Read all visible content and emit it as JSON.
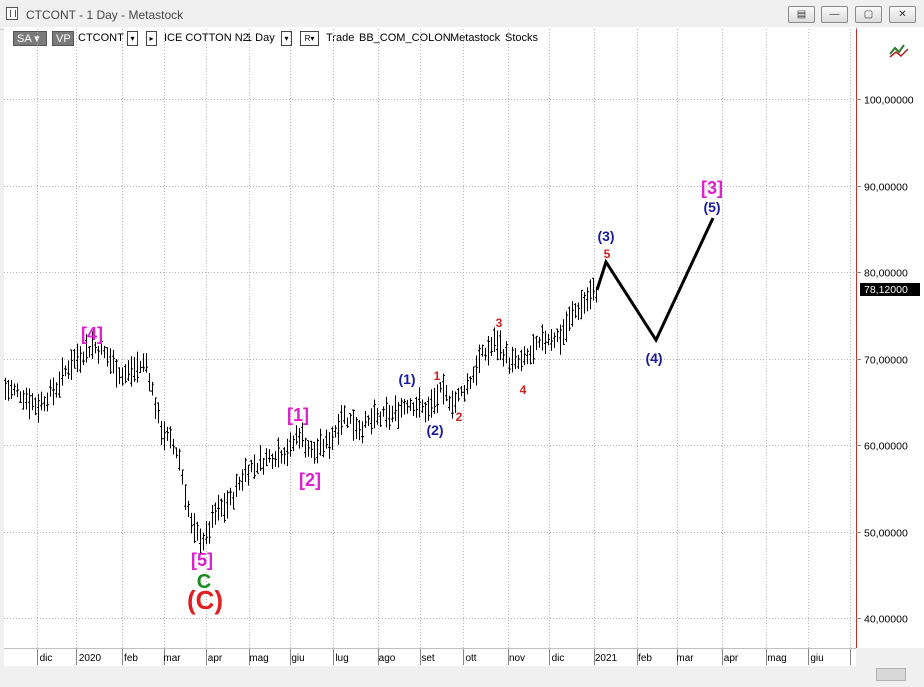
{
  "window": {
    "title": "CTCONT - 1 Day - Metastock"
  },
  "toolbar": {
    "sa_label": "SA",
    "vp_label": "VP",
    "symbol": "CTCONT",
    "instrument": "ICE COTTON N2",
    "period": "1 Day",
    "r_label": "R",
    "trade_label": "Trade",
    "layout": "BB_COM_COLON",
    "source": "Metastock",
    "category": "Stocks"
  },
  "price_axis": {
    "labels": [
      "100,00000",
      "90,00000",
      "80,00000",
      "70,00000",
      "60,00000",
      "50,00000",
      "40,00000"
    ],
    "current_price": "78,12000"
  },
  "time_axis": {
    "labels": [
      "dic",
      "2020",
      "feb",
      "mar",
      "apr",
      "mag",
      "giu",
      "lug",
      "ago",
      "set",
      "ott",
      "nov",
      "dic",
      "2021",
      "feb",
      "mar",
      "apr",
      "mag",
      "giu"
    ]
  },
  "annotations": [
    {
      "text": "[4]",
      "color": "#e020d0"
    },
    {
      "text": "[5]",
      "color": "#e020d0"
    },
    {
      "text": "C",
      "color": "#1a8a1a"
    },
    {
      "text": "(C)",
      "color": "#e02020"
    },
    {
      "text": "[1]",
      "color": "#e020d0"
    },
    {
      "text": "[2]",
      "color": "#e020d0"
    },
    {
      "text": "(1)",
      "color": "#1a1aa0"
    },
    {
      "text": "(2)",
      "color": "#1a1aa0"
    },
    {
      "text": "1",
      "color": "#d02020"
    },
    {
      "text": "2",
      "color": "#d02020"
    },
    {
      "text": "3",
      "color": "#d02020"
    },
    {
      "text": "4",
      "color": "#d02020"
    },
    {
      "text": "5",
      "color": "#d02020"
    },
    {
      "text": "(3)",
      "color": "#1a1aa0"
    },
    {
      "text": "(4)",
      "color": "#1a1aa0"
    },
    {
      "text": "(5)",
      "color": "#1a1aa0"
    },
    {
      "text": "[3]",
      "color": "#e020d0"
    }
  ],
  "colors": {
    "grid": "#b8b8b8",
    "bars": "#000000",
    "price_tag_bg": "#000000",
    "projection": "#000000",
    "right_border": "#c03030"
  }
}
